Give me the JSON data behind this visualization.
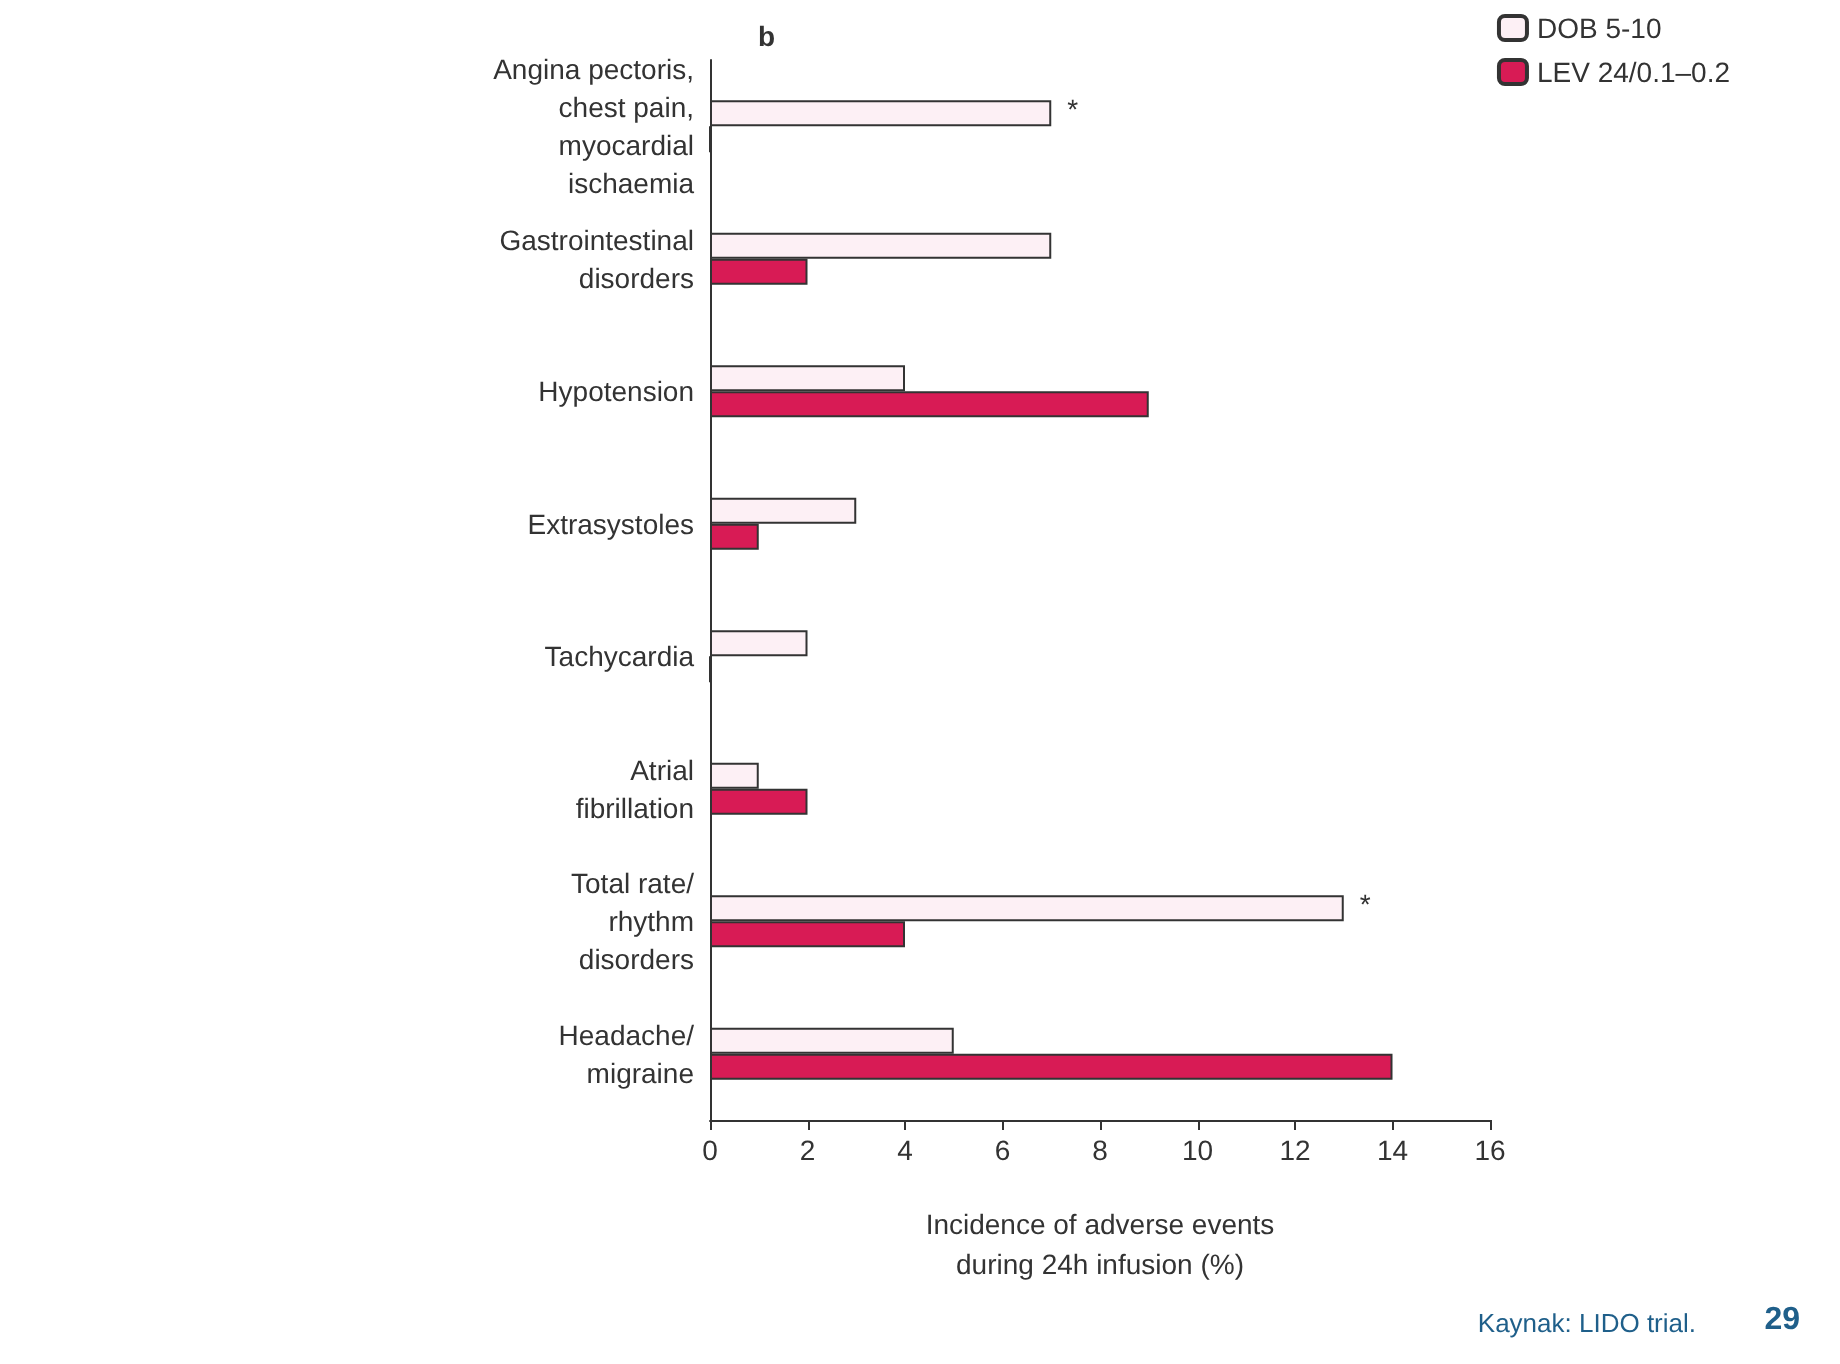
{
  "chart_data": {
    "type": "bar",
    "orientation": "horizontal",
    "title": "b",
    "xlabel": "Incidence of adverse events\nduring 24h infusion (%)",
    "categories": [
      "Angina pectoris,\nchest pain,\nmyocardial\nischaemia",
      "Gastrointestinal\ndisorders",
      "Hypotension",
      "Extrasystoles",
      "Tachycardia",
      "Atrial\nfibrillation",
      "Total rate/\nrhythm\ndisorders",
      "Headache/\nmigraine"
    ],
    "series": [
      {
        "name": "DOB 5-10",
        "color": "#fdf0f5",
        "values": [
          7,
          7,
          4,
          3,
          2,
          1,
          13,
          5
        ]
      },
      {
        "name": "LEV 24/0.1–0.2",
        "color": "#d81b55",
        "values": [
          0,
          2,
          9,
          1,
          0,
          2,
          4,
          14
        ]
      }
    ],
    "xlim": [
      0,
      16
    ],
    "xticks": [
      0,
      2,
      4,
      6,
      8,
      10,
      12,
      14,
      16
    ],
    "grid": false,
    "legend": "top right",
    "annotations": [
      {
        "text": "*",
        "x": 7,
        "y": "Angina pectoris,\nchest pain,\nmyocardial\nischaemia"
      },
      {
        "text": "*",
        "x": 13,
        "y": "Total rate/\nrhythm\ndisorders"
      },
      "Kaynak: LIDO trial.",
      "29"
    ]
  }
}
